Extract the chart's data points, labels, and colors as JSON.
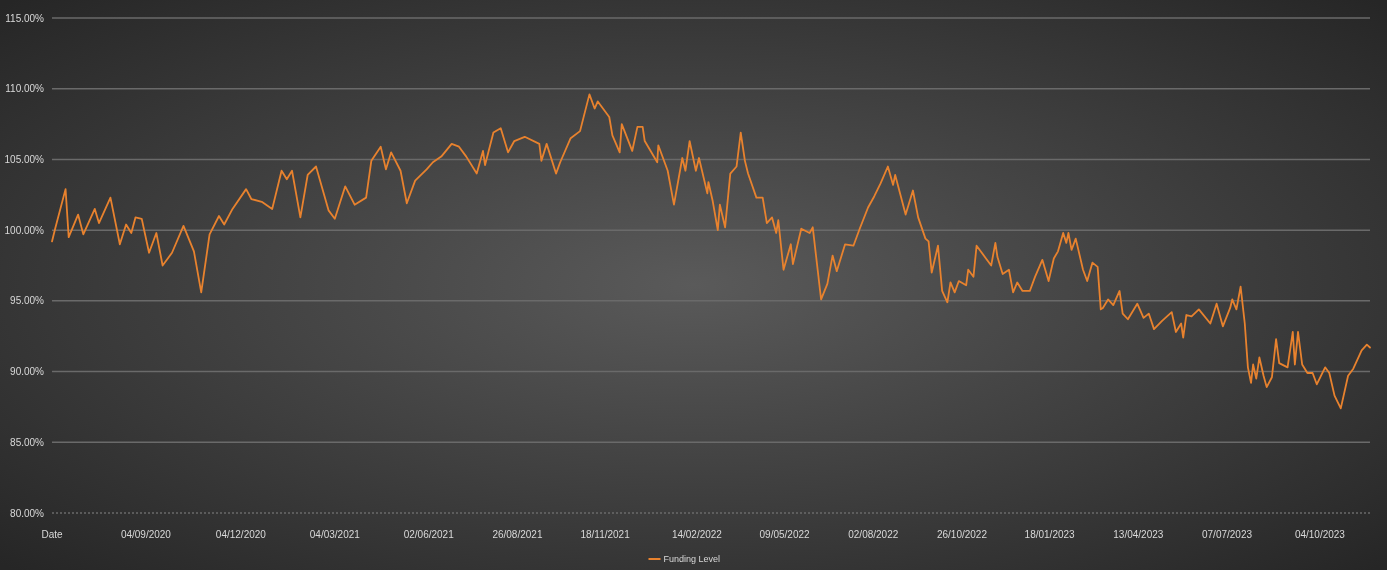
{
  "chart_data": {
    "type": "line",
    "legend": "bottom",
    "grid": "y",
    "marker": "none",
    "line_style": "solid",
    "xlim": [
      "2020-06-06",
      "2023-11-21"
    ],
    "ylim": [
      80,
      115
    ],
    "yticks": [
      {
        "value": 80,
        "label": "80.00%"
      },
      {
        "value": 85,
        "label": "85.00%"
      },
      {
        "value": 90,
        "label": "90.00%"
      },
      {
        "value": 95,
        "label": "95.00%"
      },
      {
        "value": 100,
        "label": "100.00%"
      },
      {
        "value": 105,
        "label": "105.00%"
      },
      {
        "value": 110,
        "label": "110.00%"
      },
      {
        "value": 115,
        "label": "115.00%"
      }
    ],
    "xticks": [
      {
        "value": "2020-06-06",
        "label": "Date"
      },
      {
        "value": "2020-09-04",
        "label": "04/09/2020"
      },
      {
        "value": "2020-12-04",
        "label": "04/12/2020"
      },
      {
        "value": "2021-03-04",
        "label": "04/03/2021"
      },
      {
        "value": "2021-06-02",
        "label": "02/06/2021"
      },
      {
        "value": "2021-08-26",
        "label": "26/08/2021"
      },
      {
        "value": "2021-11-18",
        "label": "18/11/2021"
      },
      {
        "value": "2022-02-14",
        "label": "14/02/2022"
      },
      {
        "value": "2022-05-09",
        "label": "09/05/2022"
      },
      {
        "value": "2022-08-02",
        "label": "02/08/2022"
      },
      {
        "value": "2022-10-26",
        "label": "26/10/2022"
      },
      {
        "value": "2023-01-18",
        "label": "18/01/2023"
      },
      {
        "value": "2023-04-13",
        "label": "13/04/2023"
      },
      {
        "value": "2023-07-07",
        "label": "07/07/2023"
      },
      {
        "value": "2023-10-04",
        "label": "04/10/2023"
      }
    ],
    "series": [
      {
        "name": "Funding Level",
        "color": "#e8822e",
        "x": [
          "2020-06-06",
          "2020-06-09",
          "2020-06-19",
          "2020-06-22",
          "2020-07-01",
          "2020-07-06",
          "2020-07-17",
          "2020-07-21",
          "2020-08-01",
          "2020-08-10",
          "2020-08-16",
          "2020-08-21",
          "2020-08-25",
          "2020-08-31",
          "2020-09-07",
          "2020-09-14",
          "2020-09-20",
          "2020-09-29",
          "2020-10-10",
          "2020-10-20",
          "2020-10-27",
          "2020-11-04",
          "2020-11-13",
          "2020-11-18",
          "2020-11-26",
          "2020-12-09",
          "2020-12-14",
          "2020-12-24",
          "2021-01-03",
          "2021-01-12",
          "2021-01-17",
          "2021-01-22",
          "2021-01-30",
          "2021-02-06",
          "2021-02-14",
          "2021-02-26",
          "2021-03-04",
          "2021-03-14",
          "2021-03-23",
          "2021-04-03",
          "2021-04-08",
          "2021-04-17",
          "2021-04-22",
          "2021-04-27",
          "2021-05-06",
          "2021-05-12",
          "2021-05-20",
          "2021-05-31",
          "2021-06-06",
          "2021-06-14",
          "2021-06-24",
          "2021-07-01",
          "2021-07-08",
          "2021-07-18",
          "2021-07-24",
          "2021-07-26",
          "2021-08-03",
          "2021-08-10",
          "2021-08-17",
          "2021-08-23",
          "2021-09-02",
          "2021-09-16",
          "2021-09-18",
          "2021-09-23",
          "2021-10-02",
          "2021-10-06",
          "2021-10-16",
          "2021-10-25",
          "2021-11-03",
          "2021-11-08",
          "2021-11-11",
          "2021-11-22",
          "2021-11-25",
          "2021-12-02",
          "2021-12-04",
          "2021-12-14",
          "2021-12-19",
          "2021-12-24",
          "2021-12-26",
          "2022-01-07",
          "2022-01-08",
          "2022-01-17",
          "2022-01-23",
          "2022-01-31",
          "2022-02-03",
          "2022-02-07",
          "2022-02-13",
          "2022-02-16",
          "2022-02-24",
          "2022-02-25",
          "2022-03-01",
          "2022-03-06",
          "2022-03-08",
          "2022-03-13",
          "2022-03-18",
          "2022-03-24",
          "2022-03-28",
          "2022-04-01",
          "2022-04-04",
          "2022-04-12",
          "2022-04-18",
          "2022-04-22",
          "2022-04-27",
          "2022-05-01",
          "2022-05-03",
          "2022-05-08",
          "2022-05-15",
          "2022-05-17",
          "2022-05-25",
          "2022-06-02",
          "2022-06-05",
          "2022-06-13",
          "2022-06-19",
          "2022-06-24",
          "2022-06-28",
          "2022-07-06",
          "2022-07-14",
          "2022-07-20",
          "2022-07-28",
          "2022-08-03",
          "2022-08-09",
          "2022-08-16",
          "2022-08-21",
          "2022-08-23",
          "2022-09-02",
          "2022-09-09",
          "2022-09-14",
          "2022-09-21",
          "2022-09-24",
          "2022-09-27",
          "2022-10-03",
          "2022-10-07",
          "2022-10-12",
          "2022-10-15",
          "2022-10-19",
          "2022-10-23",
          "2022-10-30",
          "2022-11-01",
          "2022-11-06",
          "2022-11-09",
          "2022-11-18",
          "2022-11-23",
          "2022-11-27",
          "2022-11-29",
          "2022-12-04",
          "2022-12-10",
          "2022-12-14",
          "2022-12-18",
          "2022-12-23",
          "2022-12-30",
          "2023-01-04",
          "2023-01-11",
          "2023-01-17",
          "2023-01-22",
          "2023-01-26",
          "2023-01-31",
          "2023-02-03",
          "2023-02-05",
          "2023-02-08",
          "2023-02-12",
          "2023-02-19",
          "2023-02-23",
          "2023-02-28",
          "2023-03-05",
          "2023-03-08",
          "2023-03-10",
          "2023-03-15",
          "2023-03-20",
          "2023-03-26",
          "2023-03-29",
          "2023-04-03",
          "2023-04-12",
          "2023-04-18",
          "2023-04-23",
          "2023-04-28",
          "2023-05-06",
          "2023-05-15",
          "2023-05-19",
          "2023-05-24",
          "2023-05-26",
          "2023-05-29",
          "2023-06-03",
          "2023-06-10",
          "2023-06-21",
          "2023-06-27",
          "2023-07-03",
          "2023-07-10",
          "2023-07-12",
          "2023-07-16",
          "2023-07-20",
          "2023-07-24",
          "2023-07-27",
          "2023-07-30",
          "2023-08-01",
          "2023-08-04",
          "2023-08-07",
          "2023-08-11",
          "2023-08-14",
          "2023-08-19",
          "2023-08-23",
          "2023-08-26",
          "2023-09-03",
          "2023-09-08",
          "2023-09-10",
          "2023-09-13",
          "2023-09-17",
          "2023-09-22",
          "2023-09-27",
          "2023-10-01",
          "2023-10-09",
          "2023-10-13",
          "2023-10-18",
          "2023-10-24",
          "2023-10-31",
          "2023-11-05",
          "2023-11-13",
          "2023-11-18",
          "2023-11-21"
        ],
        "values": [
          99.2,
          100.1,
          102.9,
          99.5,
          101.1,
          99.7,
          101.5,
          100.5,
          102.3,
          99.0,
          100.4,
          99.8,
          100.9,
          100.8,
          98.4,
          99.8,
          97.5,
          98.4,
          100.3,
          98.5,
          95.6,
          99.7,
          101.0,
          100.4,
          101.5,
          102.9,
          102.2,
          102.0,
          101.5,
          104.2,
          103.6,
          104.2,
          100.9,
          103.9,
          104.5,
          101.4,
          100.8,
          103.1,
          101.8,
          102.3,
          104.9,
          105.9,
          104.3,
          105.5,
          104.2,
          101.9,
          103.5,
          104.3,
          104.8,
          105.2,
          106.1,
          105.9,
          105.2,
          104.0,
          105.6,
          104.6,
          106.9,
          107.2,
          105.5,
          106.3,
          106.6,
          106.1,
          104.9,
          106.1,
          104.0,
          104.8,
          106.5,
          107.0,
          109.6,
          108.6,
          109.1,
          108.0,
          106.7,
          105.5,
          107.5,
          105.6,
          107.3,
          107.3,
          106.3,
          104.8,
          106.0,
          104.2,
          101.8,
          105.1,
          104.2,
          106.3,
          104.2,
          105.1,
          102.6,
          103.4,
          102.1,
          100.0,
          101.8,
          100.2,
          104.0,
          104.5,
          106.9,
          104.9,
          104.0,
          102.3,
          102.3,
          100.5,
          100.9,
          99.8,
          100.7,
          97.2,
          99.0,
          97.6,
          100.1,
          99.8,
          100.2,
          95.1,
          96.2,
          98.2,
          97.1,
          99.0,
          98.9,
          100.1,
          101.6,
          102.4,
          103.3,
          104.5,
          103.2,
          103.9,
          101.1,
          102.8,
          100.9,
          99.4,
          99.2,
          97.0,
          98.9,
          95.7,
          94.9,
          96.3,
          95.6,
          96.4,
          96.1,
          97.2,
          96.7,
          98.9,
          98.0,
          97.5,
          99.1,
          98.1,
          96.9,
          97.2,
          95.6,
          96.3,
          95.7,
          95.7,
          96.7,
          97.9,
          96.4,
          98.0,
          98.5,
          99.8,
          99.1,
          99.8,
          98.6,
          99.4,
          97.2,
          96.4,
          97.7,
          97.4,
          94.4,
          94.5,
          95.1,
          94.7,
          95.7,
          94.1,
          93.7,
          94.8,
          93.8,
          94.1,
          93.0,
          93.6,
          94.2,
          92.8,
          93.4,
          92.4,
          94.0,
          93.9,
          94.4,
          93.4,
          94.8,
          93.2,
          94.5,
          95.1,
          94.4,
          96.0,
          93.4,
          90.3,
          89.2,
          90.5,
          89.5,
          91.0,
          89.7,
          88.9,
          89.6,
          92.3,
          90.6,
          90.3,
          92.8,
          90.5,
          92.8,
          90.5,
          89.9,
          89.9,
          89.1,
          90.3,
          89.9,
          88.3,
          87.4,
          89.7,
          90.2,
          91.5,
          91.9,
          91.7
        ]
      }
    ]
  }
}
